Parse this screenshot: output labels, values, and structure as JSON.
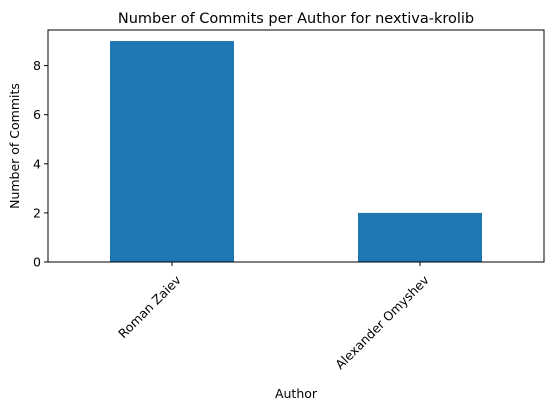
{
  "chart_data": {
    "type": "bar",
    "title": "Number of Commits per Author for nextiva-krolib",
    "xlabel": "Author",
    "ylabel": "Number of Commits",
    "categories": [
      "Roman Zaiev",
      "Alexander Omyshev"
    ],
    "values": [
      9,
      2
    ],
    "ylim": [
      0,
      9.45
    ],
    "yticks": [
      0,
      2,
      4,
      6,
      8
    ],
    "bar_color": "#1f77b4",
    "grid": false,
    "legend": "none"
  }
}
